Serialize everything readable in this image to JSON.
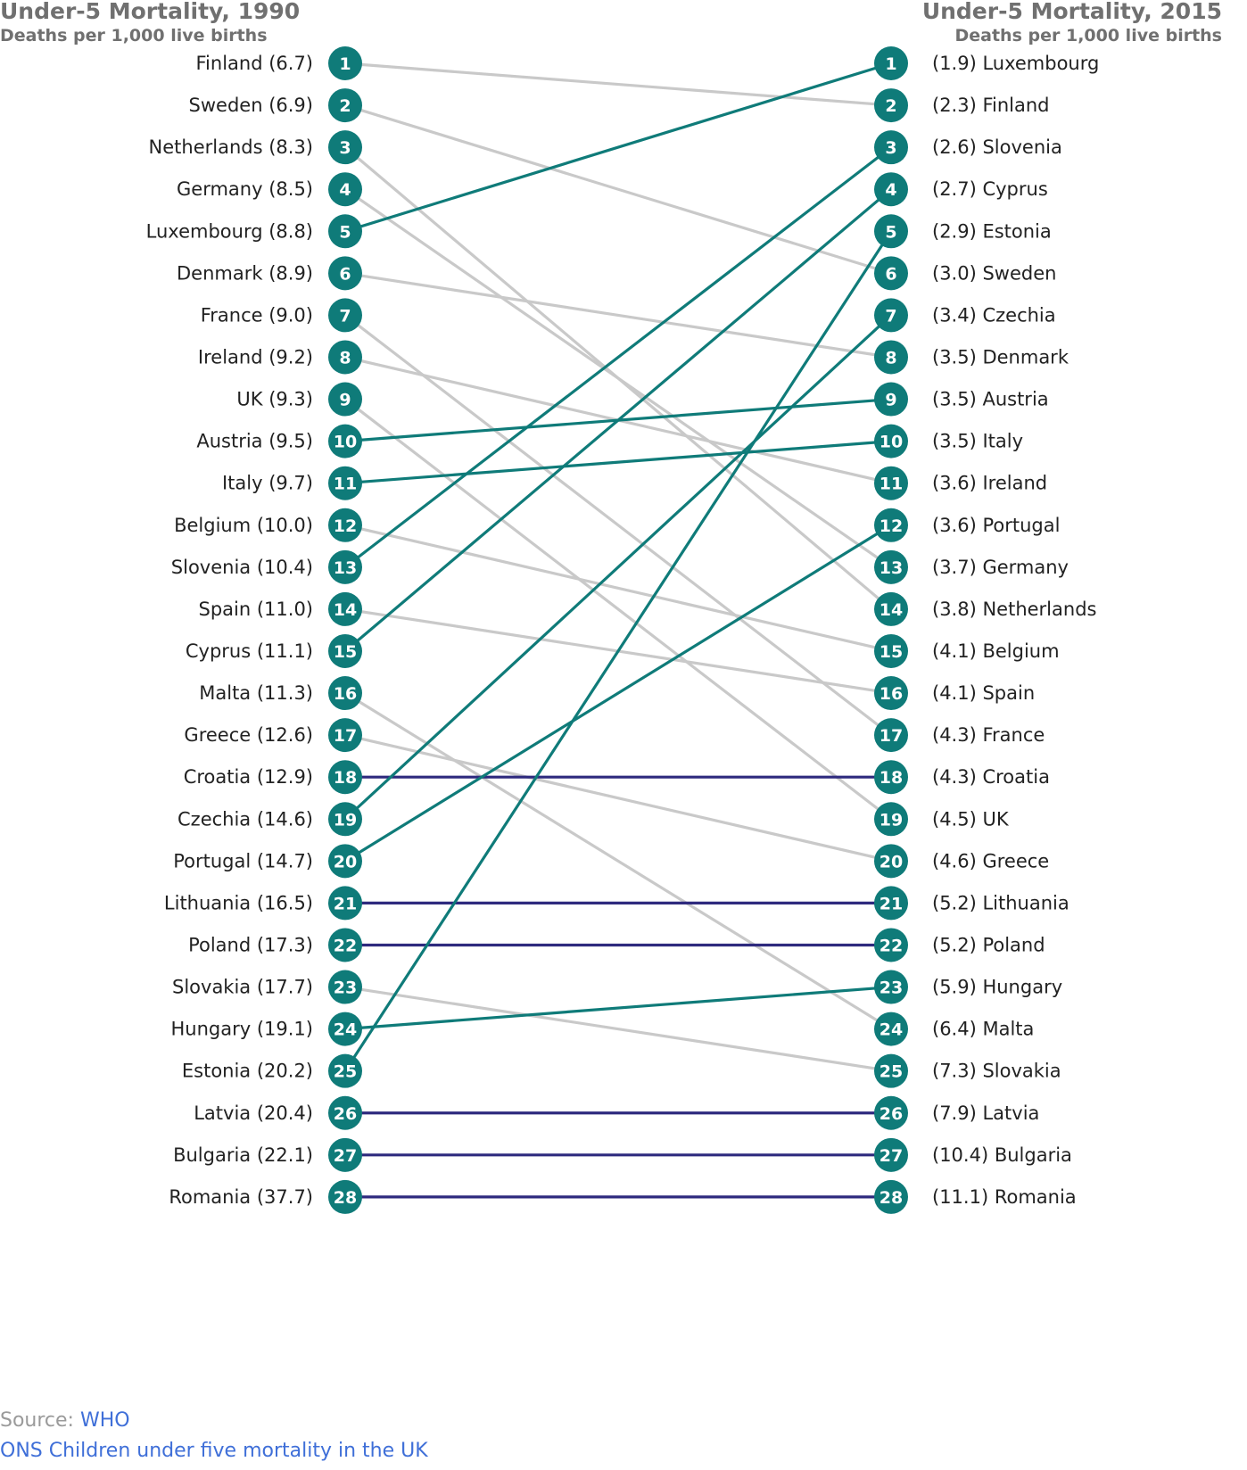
{
  "header": {
    "left_title": "Under-5 Mortality, 1990",
    "left_subtitle": "Deaths per 1,000 live births",
    "right_title": "Under-5 Mortality, 2015",
    "right_subtitle": "Deaths per 1,000 live births"
  },
  "colors": {
    "improved": "#0f7b79",
    "same": "#2e2a7e",
    "fell": "#c9c9c9",
    "dot": "#0f7b79"
  },
  "chart_data": {
    "type": "slope",
    "title": "",
    "left_year": "1990",
    "right_year": "2015",
    "left": [
      {
        "rank": 1,
        "country": "Finland",
        "value": 6.7,
        "label": "Finland (6.7)"
      },
      {
        "rank": 2,
        "country": "Sweden",
        "value": 6.9,
        "label": "Sweden (6.9)"
      },
      {
        "rank": 3,
        "country": "Netherlands",
        "value": 8.3,
        "label": "Netherlands (8.3)"
      },
      {
        "rank": 4,
        "country": "Germany",
        "value": 8.5,
        "label": "Germany (8.5)"
      },
      {
        "rank": 5,
        "country": "Luxembourg",
        "value": 8.8,
        "label": "Luxembourg (8.8)"
      },
      {
        "rank": 6,
        "country": "Denmark",
        "value": 8.9,
        "label": "Denmark (8.9)"
      },
      {
        "rank": 7,
        "country": "France",
        "value": 9.0,
        "label": "France (9.0)"
      },
      {
        "rank": 8,
        "country": "Ireland",
        "value": 9.2,
        "label": "Ireland (9.2)"
      },
      {
        "rank": 9,
        "country": "UK",
        "value": 9.3,
        "label": "UK (9.3)"
      },
      {
        "rank": 10,
        "country": "Austria",
        "value": 9.5,
        "label": "Austria (9.5)"
      },
      {
        "rank": 11,
        "country": "Italy",
        "value": 9.7,
        "label": "Italy (9.7)"
      },
      {
        "rank": 12,
        "country": "Belgium",
        "value": 10.0,
        "label": "Belgium (10.0)"
      },
      {
        "rank": 13,
        "country": "Slovenia",
        "value": 10.4,
        "label": "Slovenia (10.4)"
      },
      {
        "rank": 14,
        "country": "Spain",
        "value": 11.0,
        "label": "Spain (11.0)"
      },
      {
        "rank": 15,
        "country": "Cyprus",
        "value": 11.1,
        "label": "Cyprus (11.1)"
      },
      {
        "rank": 16,
        "country": "Malta",
        "value": 11.3,
        "label": "Malta (11.3)"
      },
      {
        "rank": 17,
        "country": "Greece",
        "value": 12.6,
        "label": "Greece (12.6)"
      },
      {
        "rank": 18,
        "country": "Croatia",
        "value": 12.9,
        "label": "Croatia (12.9)"
      },
      {
        "rank": 19,
        "country": "Czechia",
        "value": 14.6,
        "label": "Czechia (14.6)"
      },
      {
        "rank": 20,
        "country": "Portugal",
        "value": 14.7,
        "label": "Portugal (14.7)"
      },
      {
        "rank": 21,
        "country": "Lithuania",
        "value": 16.5,
        "label": "Lithuania (16.5)"
      },
      {
        "rank": 22,
        "country": "Poland",
        "value": 17.3,
        "label": "Poland (17.3)"
      },
      {
        "rank": 23,
        "country": "Slovakia",
        "value": 17.7,
        "label": "Slovakia (17.7)"
      },
      {
        "rank": 24,
        "country": "Hungary",
        "value": 19.1,
        "label": "Hungary (19.1)"
      },
      {
        "rank": 25,
        "country": "Estonia",
        "value": 20.2,
        "label": "Estonia (20.2)"
      },
      {
        "rank": 26,
        "country": "Latvia",
        "value": 20.4,
        "label": "Latvia (20.4)"
      },
      {
        "rank": 27,
        "country": "Bulgaria",
        "value": 22.1,
        "label": "Bulgaria (22.1)"
      },
      {
        "rank": 28,
        "country": "Romania",
        "value": 37.7,
        "label": "Romania (37.7)"
      }
    ],
    "right": [
      {
        "rank": 1,
        "country": "Luxembourg",
        "value": 1.9,
        "label": "(1.9) Luxembourg"
      },
      {
        "rank": 2,
        "country": "Finland",
        "value": 2.3,
        "label": "(2.3) Finland"
      },
      {
        "rank": 3,
        "country": "Slovenia",
        "value": 2.6,
        "label": "(2.6) Slovenia"
      },
      {
        "rank": 4,
        "country": "Cyprus",
        "value": 2.7,
        "label": "(2.7) Cyprus"
      },
      {
        "rank": 5,
        "country": "Estonia",
        "value": 2.9,
        "label": "(2.9) Estonia"
      },
      {
        "rank": 6,
        "country": "Sweden",
        "value": 3.0,
        "label": "(3.0) Sweden"
      },
      {
        "rank": 7,
        "country": "Czechia",
        "value": 3.4,
        "label": "(3.4) Czechia"
      },
      {
        "rank": 8,
        "country": "Denmark",
        "value": 3.5,
        "label": "(3.5) Denmark"
      },
      {
        "rank": 9,
        "country": "Austria",
        "value": 3.5,
        "label": "(3.5) Austria"
      },
      {
        "rank": 10,
        "country": "Italy",
        "value": 3.5,
        "label": "(3.5) Italy"
      },
      {
        "rank": 11,
        "country": "Ireland",
        "value": 3.6,
        "label": "(3.6) Ireland"
      },
      {
        "rank": 12,
        "country": "Portugal",
        "value": 3.6,
        "label": "(3.6) Portugal"
      },
      {
        "rank": 13,
        "country": "Germany",
        "value": 3.7,
        "label": "(3.7) Germany"
      },
      {
        "rank": 14,
        "country": "Netherlands",
        "value": 3.8,
        "label": "(3.8) Netherlands"
      },
      {
        "rank": 15,
        "country": "Belgium",
        "value": 4.1,
        "label": "(4.1) Belgium"
      },
      {
        "rank": 16,
        "country": "Spain",
        "value": 4.1,
        "label": "(4.1) Spain"
      },
      {
        "rank": 17,
        "country": "France",
        "value": 4.3,
        "label": "(4.3) France"
      },
      {
        "rank": 18,
        "country": "Croatia",
        "value": 4.3,
        "label": "(4.3) Croatia"
      },
      {
        "rank": 19,
        "country": "UK",
        "value": 4.5,
        "label": "(4.5) UK"
      },
      {
        "rank": 20,
        "country": "Greece",
        "value": 4.6,
        "label": "(4.6) Greece"
      },
      {
        "rank": 21,
        "country": "Lithuania",
        "value": 5.2,
        "label": "(5.2) Lithuania"
      },
      {
        "rank": 22,
        "country": "Poland",
        "value": 5.2,
        "label": "(5.2) Poland"
      },
      {
        "rank": 23,
        "country": "Hungary",
        "value": 5.9,
        "label": "(5.9) Hungary"
      },
      {
        "rank": 24,
        "country": "Malta",
        "value": 6.4,
        "label": "(6.4) Malta"
      },
      {
        "rank": 25,
        "country": "Slovakia",
        "value": 7.3,
        "label": "(7.3) Slovakia"
      },
      {
        "rank": 26,
        "country": "Latvia",
        "value": 7.9,
        "label": "(7.9) Latvia"
      },
      {
        "rank": 27,
        "country": "Bulgaria",
        "value": 10.4,
        "label": "(10.4) Bulgaria"
      },
      {
        "rank": 28,
        "country": "Romania",
        "value": 11.1,
        "label": "(11.1) Romania"
      }
    ]
  },
  "footer": {
    "source_prefix": "Source: ",
    "source_link": "WHO",
    "ons_link": "ONS Children under five mortality in the UK"
  }
}
